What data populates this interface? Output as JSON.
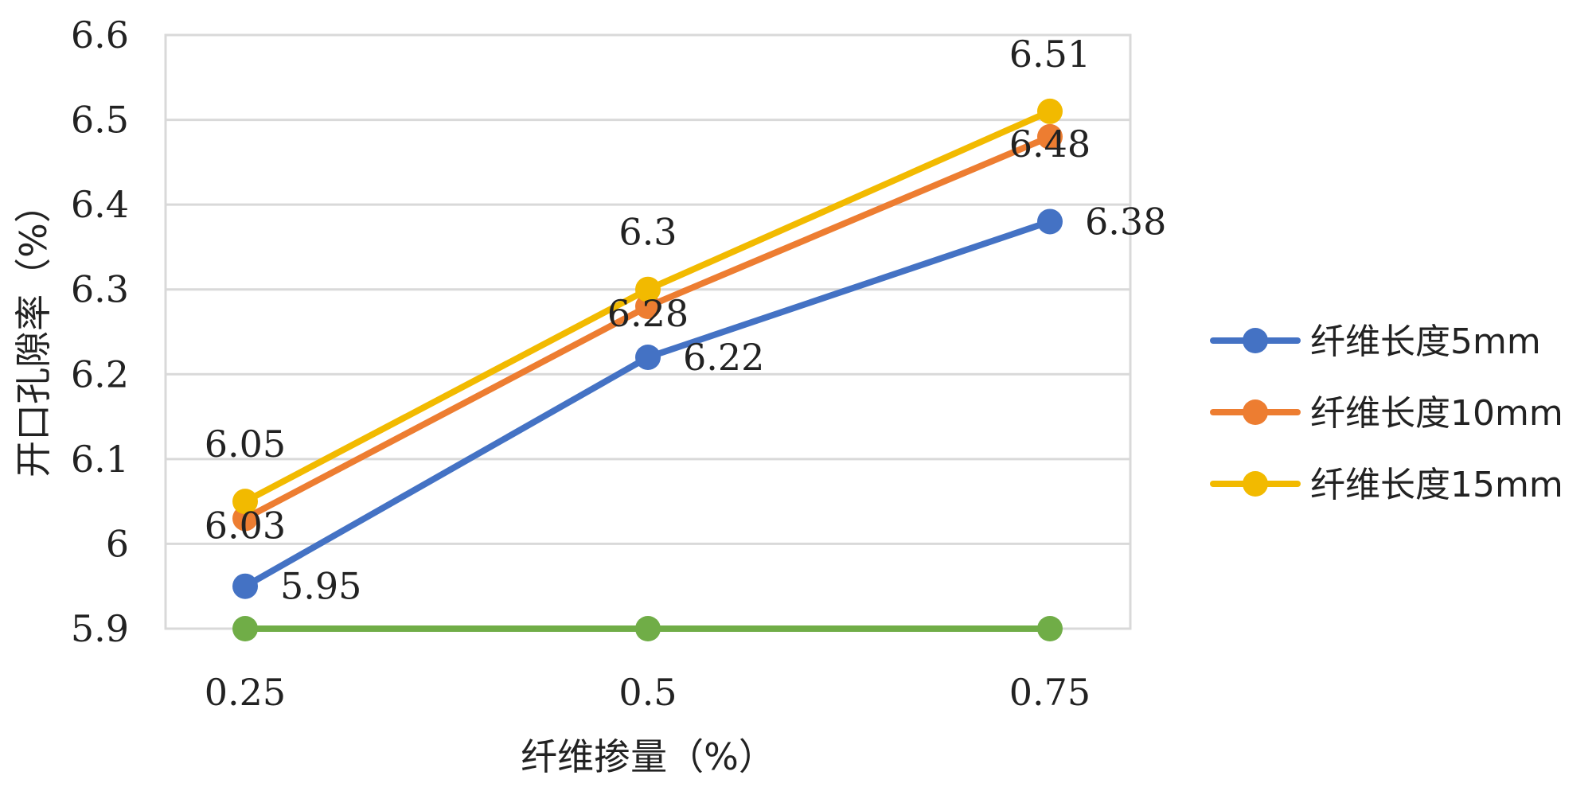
{
  "chart_data": {
    "type": "line",
    "x": [
      0.25,
      0.5,
      0.75
    ],
    "categories": [
      "0.25",
      "0.5",
      "0.75"
    ],
    "xlabel": "纤维掺量（%）",
    "ylabel": "开口孔隙率（%）",
    "ylim": [
      5.9,
      6.6
    ],
    "yticks": [
      5.9,
      6,
      6.1,
      6.2,
      6.3,
      6.4,
      6.5,
      6.6
    ],
    "ytick_labels": [
      "5.9",
      "6",
      "6.1",
      "6.2",
      "6.3",
      "6.4",
      "6.5",
      "6.6"
    ],
    "grid": true,
    "legend_position": "right",
    "series": [
      {
        "name": "纤维长度5mm",
        "values": [
          5.95,
          6.22,
          6.38
        ],
        "color": "#4472C4",
        "labels": [
          "5.95",
          "6.22",
          "6.38"
        ],
        "label_placement": [
          "right",
          "right",
          "right"
        ],
        "in_legend": true
      },
      {
        "name": "纤维长度10mm",
        "values": [
          6.03,
          6.28,
          6.48
        ],
        "color": "#ED7D31",
        "labels": [
          "6.03",
          "6.28",
          "6.48"
        ],
        "label_placement": [
          "below",
          "below",
          "below"
        ],
        "in_legend": true
      },
      {
        "name": "纤维长度15mm",
        "values": [
          6.05,
          6.3,
          6.51
        ],
        "color": "#F2BA00",
        "labels": [
          "6.05",
          "6.3",
          "6.51"
        ],
        "label_placement": [
          "above",
          "above",
          "above"
        ],
        "in_legend": true
      },
      {
        "name": "",
        "values": [
          5.9,
          5.9,
          5.9
        ],
        "color": "#70AD47",
        "labels": [],
        "label_placement": [],
        "in_legend": false
      }
    ]
  }
}
